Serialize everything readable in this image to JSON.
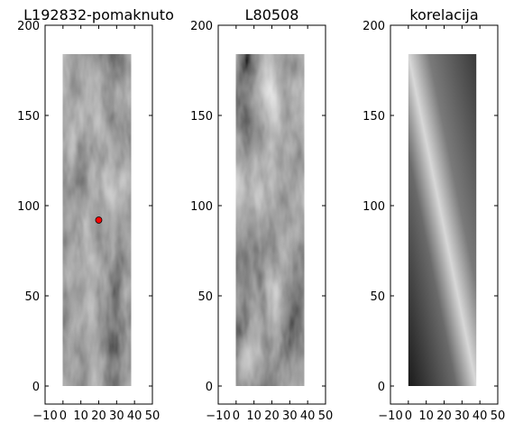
{
  "chart_data": [
    {
      "type": "image",
      "title": "L192832-pomaknuto",
      "image_extent": [
        0,
        38,
        0,
        184
      ],
      "points": {
        "x": [
          20
        ],
        "y": [
          92
        ],
        "color": "#ff0000"
      },
      "xlim": [
        -10,
        50
      ],
      "ylim": [
        -10,
        200
      ],
      "xticks": [
        {
          "value": -10,
          "label": "−10"
        },
        0,
        10,
        20,
        30,
        40,
        50
      ],
      "yticks": [
        0,
        50,
        100,
        150,
        200
      ]
    },
    {
      "type": "image",
      "title": "L80508",
      "image_extent": [
        0,
        38,
        0,
        184
      ],
      "xlim": [
        -10,
        50
      ],
      "ylim": [
        -10,
        200
      ],
      "xticks": [
        {
          "value": -10,
          "label": "−10"
        },
        0,
        10,
        20,
        30,
        40,
        50
      ],
      "yticks": [
        0,
        50,
        100,
        150,
        200
      ]
    },
    {
      "type": "image",
      "title": "korelacija",
      "image_extent": [
        0,
        38,
        0,
        184
      ],
      "xlim": [
        -10,
        50
      ],
      "ylim": [
        -10,
        200
      ],
      "xticks": [
        {
          "value": -10,
          "label": "−10"
        },
        0,
        10,
        20,
        30,
        40,
        50
      ],
      "yticks": [
        0,
        50,
        100,
        150,
        200
      ]
    }
  ]
}
